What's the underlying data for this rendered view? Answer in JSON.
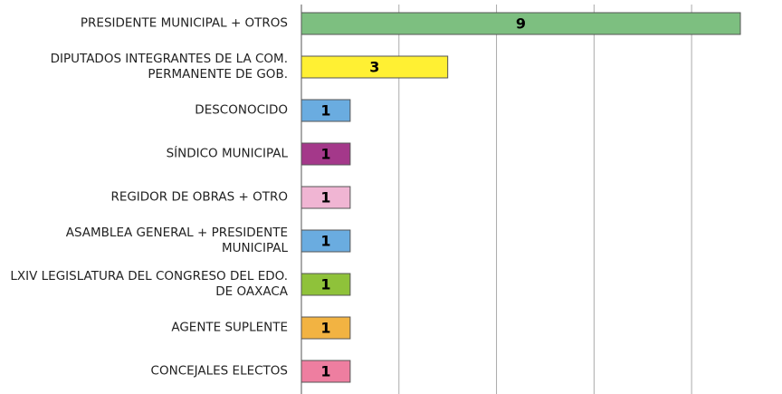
{
  "chart_data": {
    "type": "bar",
    "orientation": "horizontal",
    "categories": [
      "PRESIDENTE MUNICIPAL + OTROS",
      "DIPUTADOS INTEGRANTES DE LA COM. PERMANENTE DE GOB.",
      "DESCONOCIDO",
      "SÍNDICO MUNICIPAL",
      "REGIDOR DE OBRAS + OTRO",
      "ASAMBLEA GENERAL + PRESIDENTE MUNICIPAL",
      "LXIV LEGISLATURA DEL CONGRESO DEL EDO. DE OAXACA",
      "AGENTE SUPLENTE",
      "CONCEJALES ELECTOS"
    ],
    "values": [
      9,
      3,
      1,
      1,
      1,
      1,
      1,
      1,
      1
    ],
    "colors": [
      "#7dbf80",
      "#fff033",
      "#6aace0",
      "#a4388a",
      "#f0b5d3",
      "#6aace0",
      "#8fc23a",
      "#f2b342",
      "#ee7ea0"
    ],
    "xlim": [
      0,
      9
    ],
    "xticks": [
      0,
      2,
      4,
      6,
      8
    ],
    "grid": true
  }
}
